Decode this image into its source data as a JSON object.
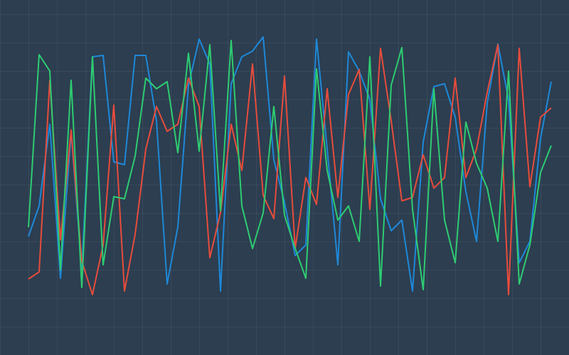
{
  "chart_data": {
    "type": "line",
    "x": [
      0,
      1,
      2,
      3,
      4,
      5,
      6,
      7,
      8,
      9,
      10,
      11,
      12,
      13,
      14,
      15,
      16,
      17,
      18,
      19,
      20,
      21,
      22,
      23,
      24,
      25,
      26,
      27,
      28,
      29,
      30,
      31,
      32,
      33,
      34,
      35,
      36,
      37,
      38,
      39,
      40,
      41,
      42,
      43,
      44,
      45,
      46,
      47,
      48,
      49
    ],
    "xlim": [
      -2.667,
      50.667
    ],
    "ylim": [
      0,
      500
    ],
    "grid": true,
    "series": [
      {
        "name": "blue",
        "color": "#1e88d8",
        "values": [
          167,
          210,
          325,
          108,
          315,
          120,
          420,
          422,
          272,
          268,
          422,
          422,
          330,
          100,
          180,
          380,
          445,
          410,
          90,
          382,
          420,
          428,
          448,
          275,
          215,
          140,
          155,
          445,
          290,
          127,
          427,
          400,
          360,
          220,
          175,
          190,
          90,
          300,
          378,
          382,
          335,
          230,
          160,
          355,
          438,
          360,
          130,
          160,
          305,
          385
        ]
      },
      {
        "name": "red",
        "color": "#e74c3c",
        "values": [
          107,
          117,
          387,
          162,
          317,
          132,
          85,
          155,
          352,
          90,
          170,
          290,
          350,
          315,
          325,
          390,
          350,
          137,
          200,
          325,
          260,
          410,
          225,
          192,
          393,
          150,
          250,
          212,
          375,
          222,
          367,
          402,
          205,
          432,
          330,
          217,
          222,
          282,
          235,
          250,
          390,
          250,
          290,
          370,
          437,
          85,
          432,
          237,
          335,
          348
        ]
      },
      {
        "name": "green",
        "color": "#2ecc71",
        "values": [
          180,
          423,
          400,
          120,
          387,
          95,
          420,
          127,
          223,
          220,
          280,
          390,
          375,
          385,
          285,
          425,
          287,
          437,
          203,
          443,
          210,
          150,
          200,
          350,
          197,
          150,
          108,
          403,
          260,
          190,
          210,
          160,
          420,
          97,
          380,
          433,
          205,
          92,
          375,
          190,
          130,
          328,
          270,
          235,
          160,
          400,
          100,
          155,
          257,
          295
        ]
      }
    ]
  }
}
